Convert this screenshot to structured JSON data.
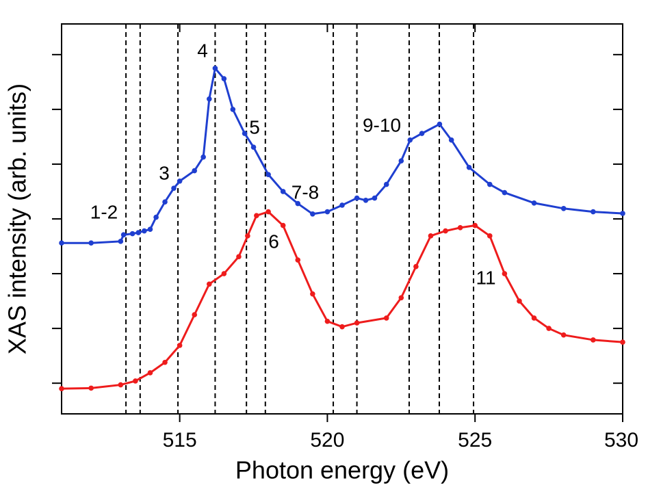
{
  "chart_data": {
    "type": "line",
    "xlabel": "Photon energy (eV)",
    "ylabel": "XAS intensity (arb. units)",
    "xlim": [
      511,
      530
    ],
    "xticks": [
      515,
      520,
      525,
      530
    ],
    "ylim": [
      -0.56,
      6.56
    ],
    "yticks": [
      0,
      1,
      2,
      3,
      4,
      5,
      6
    ],
    "reference_lines": [
      513.18,
      513.66,
      514.94,
      516.2,
      517.26,
      517.9,
      520.2,
      521.0,
      522.77,
      523.79,
      524.95
    ],
    "annotations": [
      "1-2",
      "3",
      "4",
      "5",
      "6",
      "7-8",
      "9-10",
      "11"
    ],
    "series": [
      {
        "color": "#1f3fd0",
        "x": [
          511,
          512,
          513,
          513.1,
          513.4,
          513.6,
          513.8,
          514,
          514.2,
          514.5,
          514.8,
          515,
          515.5,
          515.8,
          516,
          516.2,
          516.5,
          516.8,
          517.2,
          517.5,
          518,
          518.5,
          519,
          519.5,
          520,
          520.5,
          521,
          521.3,
          521.6,
          522,
          522.5,
          522.8,
          523.2,
          523.8,
          524.2,
          524.8,
          525.5,
          526,
          527,
          528,
          529,
          530
        ],
        "values": [
          2.56,
          2.56,
          2.59,
          2.71,
          2.73,
          2.75,
          2.78,
          2.81,
          3.03,
          3.31,
          3.56,
          3.69,
          3.88,
          4.13,
          5.19,
          5.75,
          5.56,
          5.0,
          4.56,
          4.31,
          3.81,
          3.5,
          3.28,
          3.09,
          3.13,
          3.25,
          3.38,
          3.34,
          3.38,
          3.63,
          4.06,
          4.44,
          4.56,
          4.73,
          4.44,
          3.94,
          3.63,
          3.48,
          3.29,
          3.19,
          3.13,
          3.1
        ]
      },
      {
        "color": "#ee1c1c",
        "x": [
          511,
          512,
          513,
          513.5,
          514,
          514.5,
          515,
          515.5,
          516,
          516.5,
          517,
          517.3,
          517.6,
          518,
          518.5,
          519,
          519.5,
          520,
          520.5,
          521,
          522,
          522.5,
          523,
          523.5,
          524,
          524.5,
          525,
          525.5,
          526,
          526.5,
          527,
          527.5,
          528,
          529,
          530
        ],
        "values": [
          -0.1,
          -0.09,
          -0.03,
          0.04,
          0.19,
          0.38,
          0.69,
          1.25,
          1.81,
          2.0,
          2.31,
          2.69,
          3.06,
          3.13,
          2.88,
          2.25,
          1.63,
          1.13,
          1.03,
          1.1,
          1.19,
          1.56,
          2.13,
          2.69,
          2.78,
          2.84,
          2.88,
          2.69,
          2.0,
          1.5,
          1.19,
          1.0,
          0.88,
          0.79,
          0.75
        ]
      }
    ]
  }
}
